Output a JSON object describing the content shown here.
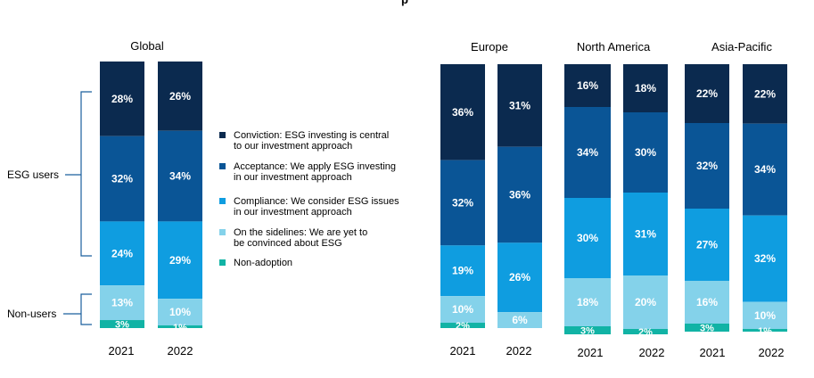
{
  "top_stub_text": "p",
  "chart_data": {
    "type": "bar",
    "stacked": true,
    "normalized": true,
    "colors": {
      "conviction": "#0b2a4f",
      "acceptance": "#0a5596",
      "compliance": "#0f9de0",
      "sidelines": "#84d2ea",
      "non_adoption": "#11b3a5",
      "label_light": "#ffffff",
      "axis_text": "#000000"
    },
    "legend": [
      {
        "key": "conviction",
        "lines": [
          "Conviction: ESG investing is central",
          "to our investment approach"
        ]
      },
      {
        "key": "acceptance",
        "lines": [
          "Acceptance: We apply ESG investing",
          "in our investment approach"
        ]
      },
      {
        "key": "compliance",
        "lines": [
          "Compliance: We consider ESG issues",
          "in our investment approach"
        ]
      },
      {
        "key": "sidelines",
        "lines": [
          "On the sidelines: We are yet to",
          "be convinced about ESG"
        ]
      },
      {
        "key": "non_adoption",
        "lines": [
          "Non-adoption"
        ]
      }
    ],
    "brackets": [
      {
        "label": "ESG users"
      },
      {
        "label": "Non-users"
      }
    ],
    "groups": [
      {
        "title": "Global",
        "bars": [
          {
            "year": "2021",
            "values": {
              "conviction": 28,
              "acceptance": 32,
              "compliance": 24,
              "sidelines": 13,
              "non_adoption": 3
            },
            "labels": {
              "conviction": "28%",
              "acceptance": "32%",
              "compliance": "24%",
              "sidelines": "13%",
              "non_adoption": "3%"
            }
          },
          {
            "year": "2022",
            "values": {
              "conviction": 26,
              "acceptance": 34,
              "compliance": 29,
              "sidelines": 10,
              "non_adoption": 1
            },
            "labels": {
              "conviction": "26%",
              "acceptance": "34%",
              "compliance": "29%",
              "sidelines": "10%",
              "non_adoption": "1%"
            }
          }
        ]
      },
      {
        "title": "Europe",
        "bars": [
          {
            "year": "2021",
            "values": {
              "conviction": 36,
              "acceptance": 32,
              "compliance": 19,
              "sidelines": 10,
              "non_adoption": 2
            },
            "labels": {
              "conviction": "36%",
              "acceptance": "32%",
              "compliance": "19%",
              "sidelines": "10%",
              "non_adoption": "2%"
            }
          },
          {
            "year": "2022",
            "values": {
              "conviction": 31,
              "acceptance": 36,
              "compliance": 26,
              "sidelines": 6,
              "non_adoption": 0
            },
            "labels": {
              "conviction": "31%",
              "acceptance": "36%",
              "compliance": "26%",
              "sidelines": "6%",
              "non_adoption": ""
            }
          }
        ]
      },
      {
        "title": "North America",
        "bars": [
          {
            "year": "2021",
            "values": {
              "conviction": 16,
              "acceptance": 34,
              "compliance": 30,
              "sidelines": 18,
              "non_adoption": 3
            },
            "labels": {
              "conviction": "16%",
              "acceptance": "34%",
              "compliance": "30%",
              "sidelines": "18%",
              "non_adoption": "3%"
            }
          },
          {
            "year": "2022",
            "values": {
              "conviction": 18,
              "acceptance": 30,
              "compliance": 31,
              "sidelines": 20,
              "non_adoption": 2
            },
            "labels": {
              "conviction": "18%",
              "acceptance": "30%",
              "compliance": "31%",
              "sidelines": "20%",
              "non_adoption": "2%"
            }
          }
        ]
      },
      {
        "title": "Asia-Pacific",
        "bars": [
          {
            "year": "2021",
            "values": {
              "conviction": 22,
              "acceptance": 32,
              "compliance": 27,
              "sidelines": 16,
              "non_adoption": 3
            },
            "labels": {
              "conviction": "22%",
              "acceptance": "32%",
              "compliance": "27%",
              "sidelines": "16%",
              "non_adoption": "3%"
            }
          },
          {
            "year": "2022",
            "values": {
              "conviction": 22,
              "acceptance": 34,
              "compliance": 32,
              "sidelines": 10,
              "non_adoption": 1
            },
            "labels": {
              "conviction": "22%",
              "acceptance": "34%",
              "compliance": "32%",
              "sidelines": "10%",
              "non_adoption": "1%"
            }
          }
        ]
      }
    ]
  }
}
